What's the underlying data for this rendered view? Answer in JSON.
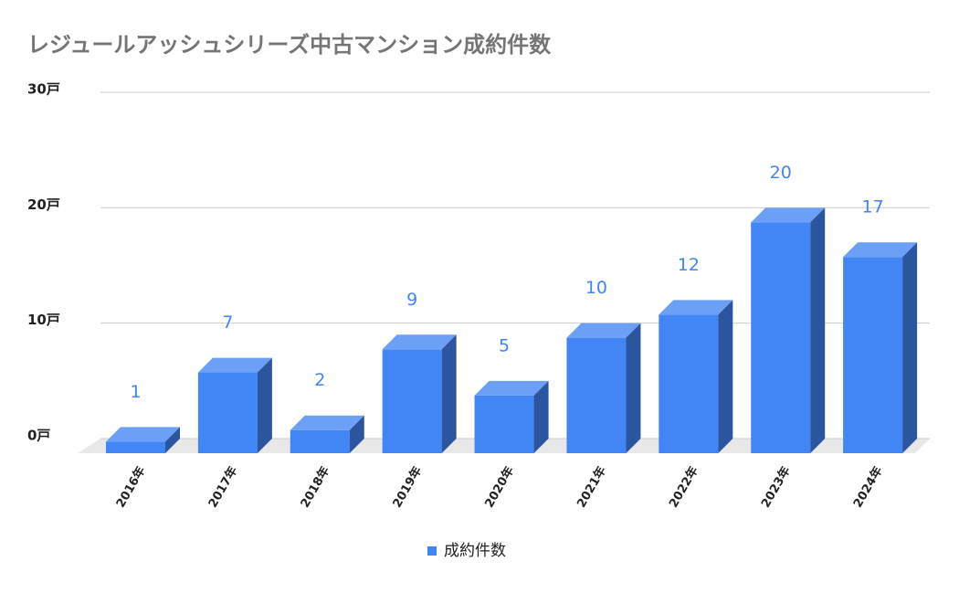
{
  "chart_data": {
    "type": "bar3d",
    "title": "レジュールアッシュシリーズ中古マンション成約件数",
    "categories": [
      "2016年",
      "2017年",
      "2018年",
      "2019年",
      "2020年",
      "2021年",
      "2022年",
      "2023年",
      "2024年"
    ],
    "series": [
      {
        "name": "成約件数",
        "color": "#4285f4",
        "values": [
          1,
          7,
          2,
          9,
          5,
          10,
          12,
          20,
          17
        ]
      }
    ],
    "ylim": [
      0,
      30
    ],
    "yticks": [
      {
        "value": 0,
        "label": "0戸"
      },
      {
        "value": 10,
        "label": "10戸"
      },
      {
        "value": 20,
        "label": "20戸"
      },
      {
        "value": 30,
        "label": "30戸"
      }
    ],
    "grid": true
  }
}
